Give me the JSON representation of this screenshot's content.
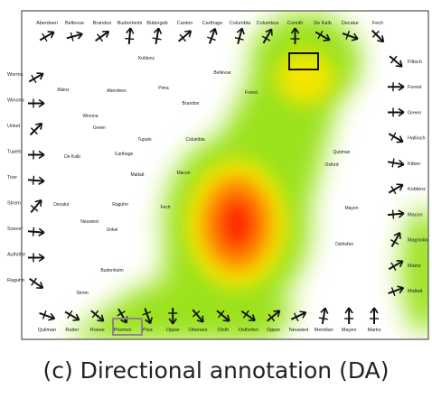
{
  "caption": "(c) Directional annotation (DA)",
  "colors": {
    "frame": "#333333",
    "text": "#222222",
    "heat_low": "#d7f0a0",
    "heat_mid": "#9be21a",
    "heat_high": "#f2e600",
    "heat_peak": "#ff2a00",
    "box_primary": "#111111",
    "box_secondary": "#888888"
  },
  "anchors": {
    "top": [
      {
        "label": "Aberdeen",
        "dir": -30
      },
      {
        "label": "Bellevue",
        "dir": -15
      },
      {
        "label": "Brandon",
        "dir": -35
      },
      {
        "label": "Budenheim",
        "dir": -85
      },
      {
        "label": "Bübingeb",
        "dir": -80
      },
      {
        "label": "Canton",
        "dir": -40
      },
      {
        "label": "Carthage",
        "dir": -70
      },
      {
        "label": "Columbia",
        "dir": -75
      },
      {
        "label": "Columbus",
        "dir": -60
      },
      {
        "label": "Corinth",
        "dir": -90
      },
      {
        "label": "De Kalb",
        "dir": 30
      },
      {
        "label": "Decatur",
        "dir": 20
      },
      {
        "label": "Fech",
        "dir": 45
      }
    ],
    "left": [
      {
        "label": "Worms",
        "dir": -30
      },
      {
        "label": "Winona",
        "dir": 0
      },
      {
        "label": "Unkel",
        "dir": -45
      },
      {
        "label": "Tupelo",
        "dir": 0
      },
      {
        "label": "Trier",
        "dir": 5
      },
      {
        "label": "Strom",
        "dir": -50
      },
      {
        "label": "Soever",
        "dir": 5
      },
      {
        "label": "Aulhöfte",
        "dir": 0
      },
      {
        "label": "Raguhn",
        "dir": 35
      }
    ],
    "right": [
      {
        "label": "Flitsch",
        "dir": 40
      },
      {
        "label": "Forest",
        "dir": 0
      },
      {
        "label": "Green",
        "dir": 0
      },
      {
        "label": "Hallioch",
        "dir": 30
      },
      {
        "label": "Kitten",
        "dir": 10
      },
      {
        "label": "Koblenz",
        "dir": -30
      },
      {
        "label": "Macon",
        "dir": -5
      },
      {
        "label": "Magnolia",
        "dir": -60
      },
      {
        "label": "Mainz",
        "dir": -30
      },
      {
        "label": "Maltatt",
        "dir": -20
      }
    ],
    "bottom": [
      {
        "label": "Quilman",
        "dir": 20
      },
      {
        "label": "Rutter",
        "dir": 30
      },
      {
        "label": "Roese",
        "dir": 40
      },
      {
        "label": "Prismen",
        "dir": 60
      },
      {
        "label": "Pisa",
        "dir": 70
      },
      {
        "label": "Opper",
        "dir": 90
      },
      {
        "label": "Obersee",
        "dir": 50
      },
      {
        "label": "Olsth",
        "dir": 40
      },
      {
        "label": "Osthofen",
        "dir": 35
      },
      {
        "label": "Opper",
        "dir": -40
      },
      {
        "label": "Neuwied",
        "dir": -25
      },
      {
        "label": "Meridian",
        "dir": -80
      },
      {
        "label": "Mayen",
        "dir": -90
      },
      {
        "label": "Marks",
        "dir": -90
      }
    ]
  },
  "interior_labels": [
    "Koblenz",
    "Bellevue",
    "Mainz",
    "Aberdeen",
    "Pima",
    "Forest",
    "Brandon",
    "Winona",
    "Green",
    "Tupalo",
    "Columbia",
    "Quitman",
    "De Kalb",
    "Carthage",
    "Macon",
    "Oxford",
    "Maltatt",
    "Decatur",
    "Raguhn",
    "Fech",
    "Mayen",
    "Neuwied",
    "Unkel",
    "Osthofen",
    "Budenheim",
    "Strom"
  ]
}
